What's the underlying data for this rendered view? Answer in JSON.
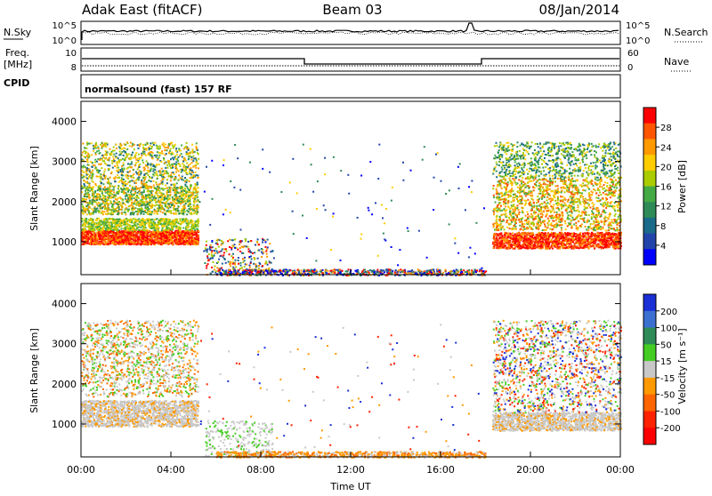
{
  "header": {
    "station": "Adak East (fitACF)",
    "beam": "Beam 03",
    "date": "08/Jan/2014"
  },
  "noise_panel": {
    "left_label": "N.Sky",
    "left_ticks": [
      "10^5",
      "10^0"
    ],
    "right_ticks": [
      "10^5",
      "10^0"
    ],
    "right_label": "N.Search"
  },
  "freq_panel": {
    "left_label_1": "Freq.",
    "left_label_2": "[MHz]",
    "left_ticks": [
      "10",
      "8"
    ],
    "right_ticks": [
      "60",
      "0"
    ],
    "right_label": "Nave",
    "cpid_label": "CPID",
    "cpid_text": "normalsound (fast) 157 RF"
  },
  "chart_data": [
    {
      "type": "heatmap",
      "panel": "power",
      "ylabel": "Slant Range [km]",
      "yticks": [
        "4000",
        "3000",
        "2000",
        "1000"
      ],
      "ylim": [
        180,
        4500
      ],
      "xlim_hours": [
        0,
        24
      ],
      "colorbar": {
        "label": "Power [dB]",
        "ticks": [
          "28",
          "24",
          "20",
          "16",
          "12",
          "8",
          "4"
        ],
        "colors": [
          "#ff0000",
          "#ff5500",
          "#ff9900",
          "#ffcc00",
          "#aacc00",
          "#44aa44",
          "#2e8b57",
          "#1a6a8a",
          "#2244aa",
          "#0000ff"
        ],
        "range": [
          0,
          32
        ]
      }
    },
    {
      "type": "heatmap",
      "panel": "velocity",
      "ylabel": "Slant Range [km]",
      "yticks": [
        "4000",
        "3000",
        "2000",
        "1000"
      ],
      "ylim": [
        180,
        4500
      ],
      "xlim_hours": [
        0,
        24
      ],
      "colorbar": {
        "label": "Velocity [m s⁻¹]",
        "ticks": [
          "200",
          "100",
          "50",
          "15",
          "-15",
          "-50",
          "-100",
          "-200"
        ],
        "colors": [
          "#1a2fd6",
          "#3b6fd0",
          "#2e8b57",
          "#44cc22",
          "#c8c8c8",
          "#ff9900",
          "#ff6600",
          "#ff2200",
          "#ff0000"
        ]
      }
    }
  ],
  "xaxis": {
    "ticks": [
      "00:00",
      "04:00",
      "08:00",
      "12:00",
      "16:00",
      "20:00",
      "00:00"
    ],
    "label": "Time UT"
  }
}
